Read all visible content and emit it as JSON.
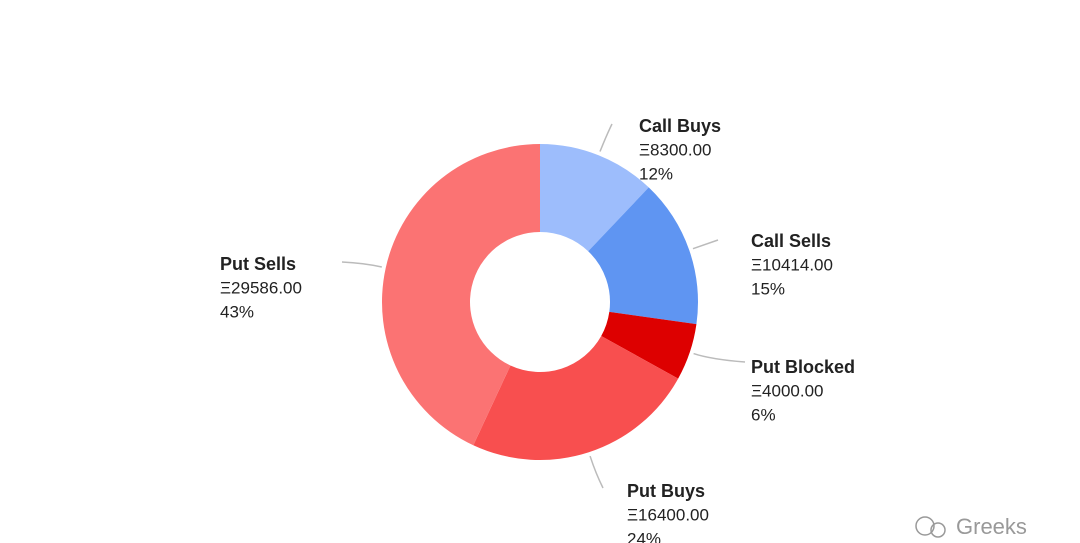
{
  "chart_data": {
    "type": "donut",
    "categories": [
      "Call Buys",
      "Call Sells",
      "Put Blocked",
      "Put Buys",
      "Put Sells"
    ],
    "values": [
      8300,
      10414,
      4000,
      16400,
      29586
    ],
    "value_labels": [
      "Ξ8300.00",
      "Ξ10414.00",
      "Ξ4000.00",
      "Ξ16400.00",
      "Ξ29586.00"
    ],
    "percent_labels": [
      "12%",
      "15%",
      "6%",
      "24%",
      "43%"
    ],
    "colors": [
      "#9dbdfc",
      "#5f95f2",
      "#dd0000",
      "#f84f4f",
      "#fb7373"
    ]
  },
  "watermark": "Greeks"
}
